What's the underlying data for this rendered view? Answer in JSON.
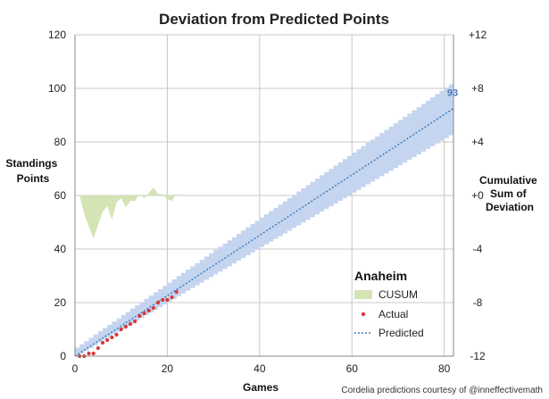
{
  "chart_data": {
    "type": "line",
    "title": "Deviation from Predicted Points",
    "xlabel": "Games",
    "ylabel_lines": [
      "Standings",
      "Points"
    ],
    "y2label_lines": [
      "Cumulative",
      "Sum of",
      "Deviation"
    ],
    "xlim": [
      0,
      82
    ],
    "ylim": [
      0,
      120
    ],
    "y2lim": [
      -12,
      12
    ],
    "x_ticks": [
      0,
      20,
      40,
      60,
      80
    ],
    "x_tick_labels": [
      "0",
      "20",
      "40",
      "60",
      "80"
    ],
    "y_ticks": [
      0,
      20,
      40,
      60,
      80,
      100,
      120
    ],
    "y_tick_labels": [
      "0",
      "20",
      "40",
      "60",
      "80",
      "100",
      "120"
    ],
    "y2_ticks": [
      -12,
      -8,
      -4,
      0,
      4,
      8,
      12
    ],
    "y2_tick_labels": [
      "-12",
      "-8",
      "-4",
      "+0",
      "+4",
      "+8",
      "+12"
    ],
    "grid": true,
    "legend": {
      "position": "bottom-right",
      "title": "Anaheim",
      "entries": [
        "CUSUM",
        "Actual",
        "Predicted"
      ]
    },
    "end_label": "93",
    "credit": "Cordelia predictions courtesy of @inneffectivemath",
    "colors": {
      "band": "#c5d5ef",
      "cusum": "#d4e4b4",
      "actual": "#d83a3a",
      "predicted": "#3d7fc4",
      "grid": "#c8c8c8"
    },
    "series": [
      {
        "name": "Predicted",
        "x": [
          0,
          82
        ],
        "y": [
          0,
          92.5
        ]
      },
      {
        "name": "Actual",
        "x": [
          1,
          2,
          3,
          4,
          5,
          6,
          7,
          8,
          9,
          10,
          11,
          12,
          13,
          14,
          15,
          16,
          17,
          18,
          19,
          20,
          21,
          22
        ],
        "y": [
          0,
          0,
          1,
          1,
          3,
          5,
          6,
          7,
          8,
          10,
          11,
          12,
          13,
          15,
          16,
          17,
          18,
          20,
          21,
          21,
          22,
          24
        ]
      },
      {
        "name": "CUSUM",
        "x": [
          1,
          2,
          3,
          4,
          5,
          6,
          7,
          8,
          9,
          10,
          11,
          12,
          13,
          14,
          15,
          16,
          17,
          18,
          19,
          20,
          21,
          22
        ],
        "y": [
          0,
          -1.4,
          -2.3,
          -3.2,
          -2.2,
          -1.2,
          -0.8,
          -1.8,
          -0.5,
          -0.2,
          -0.9,
          -0.4,
          -0.4,
          0.1,
          -0.2,
          0.2,
          0.6,
          0.1,
          0.1,
          -0.3,
          -0.4,
          0.2
        ]
      },
      {
        "name": "Band",
        "x": [
          0,
          82
        ],
        "upper": [
          2,
          101.5
        ],
        "lower": [
          0,
          83.5
        ]
      }
    ]
  }
}
